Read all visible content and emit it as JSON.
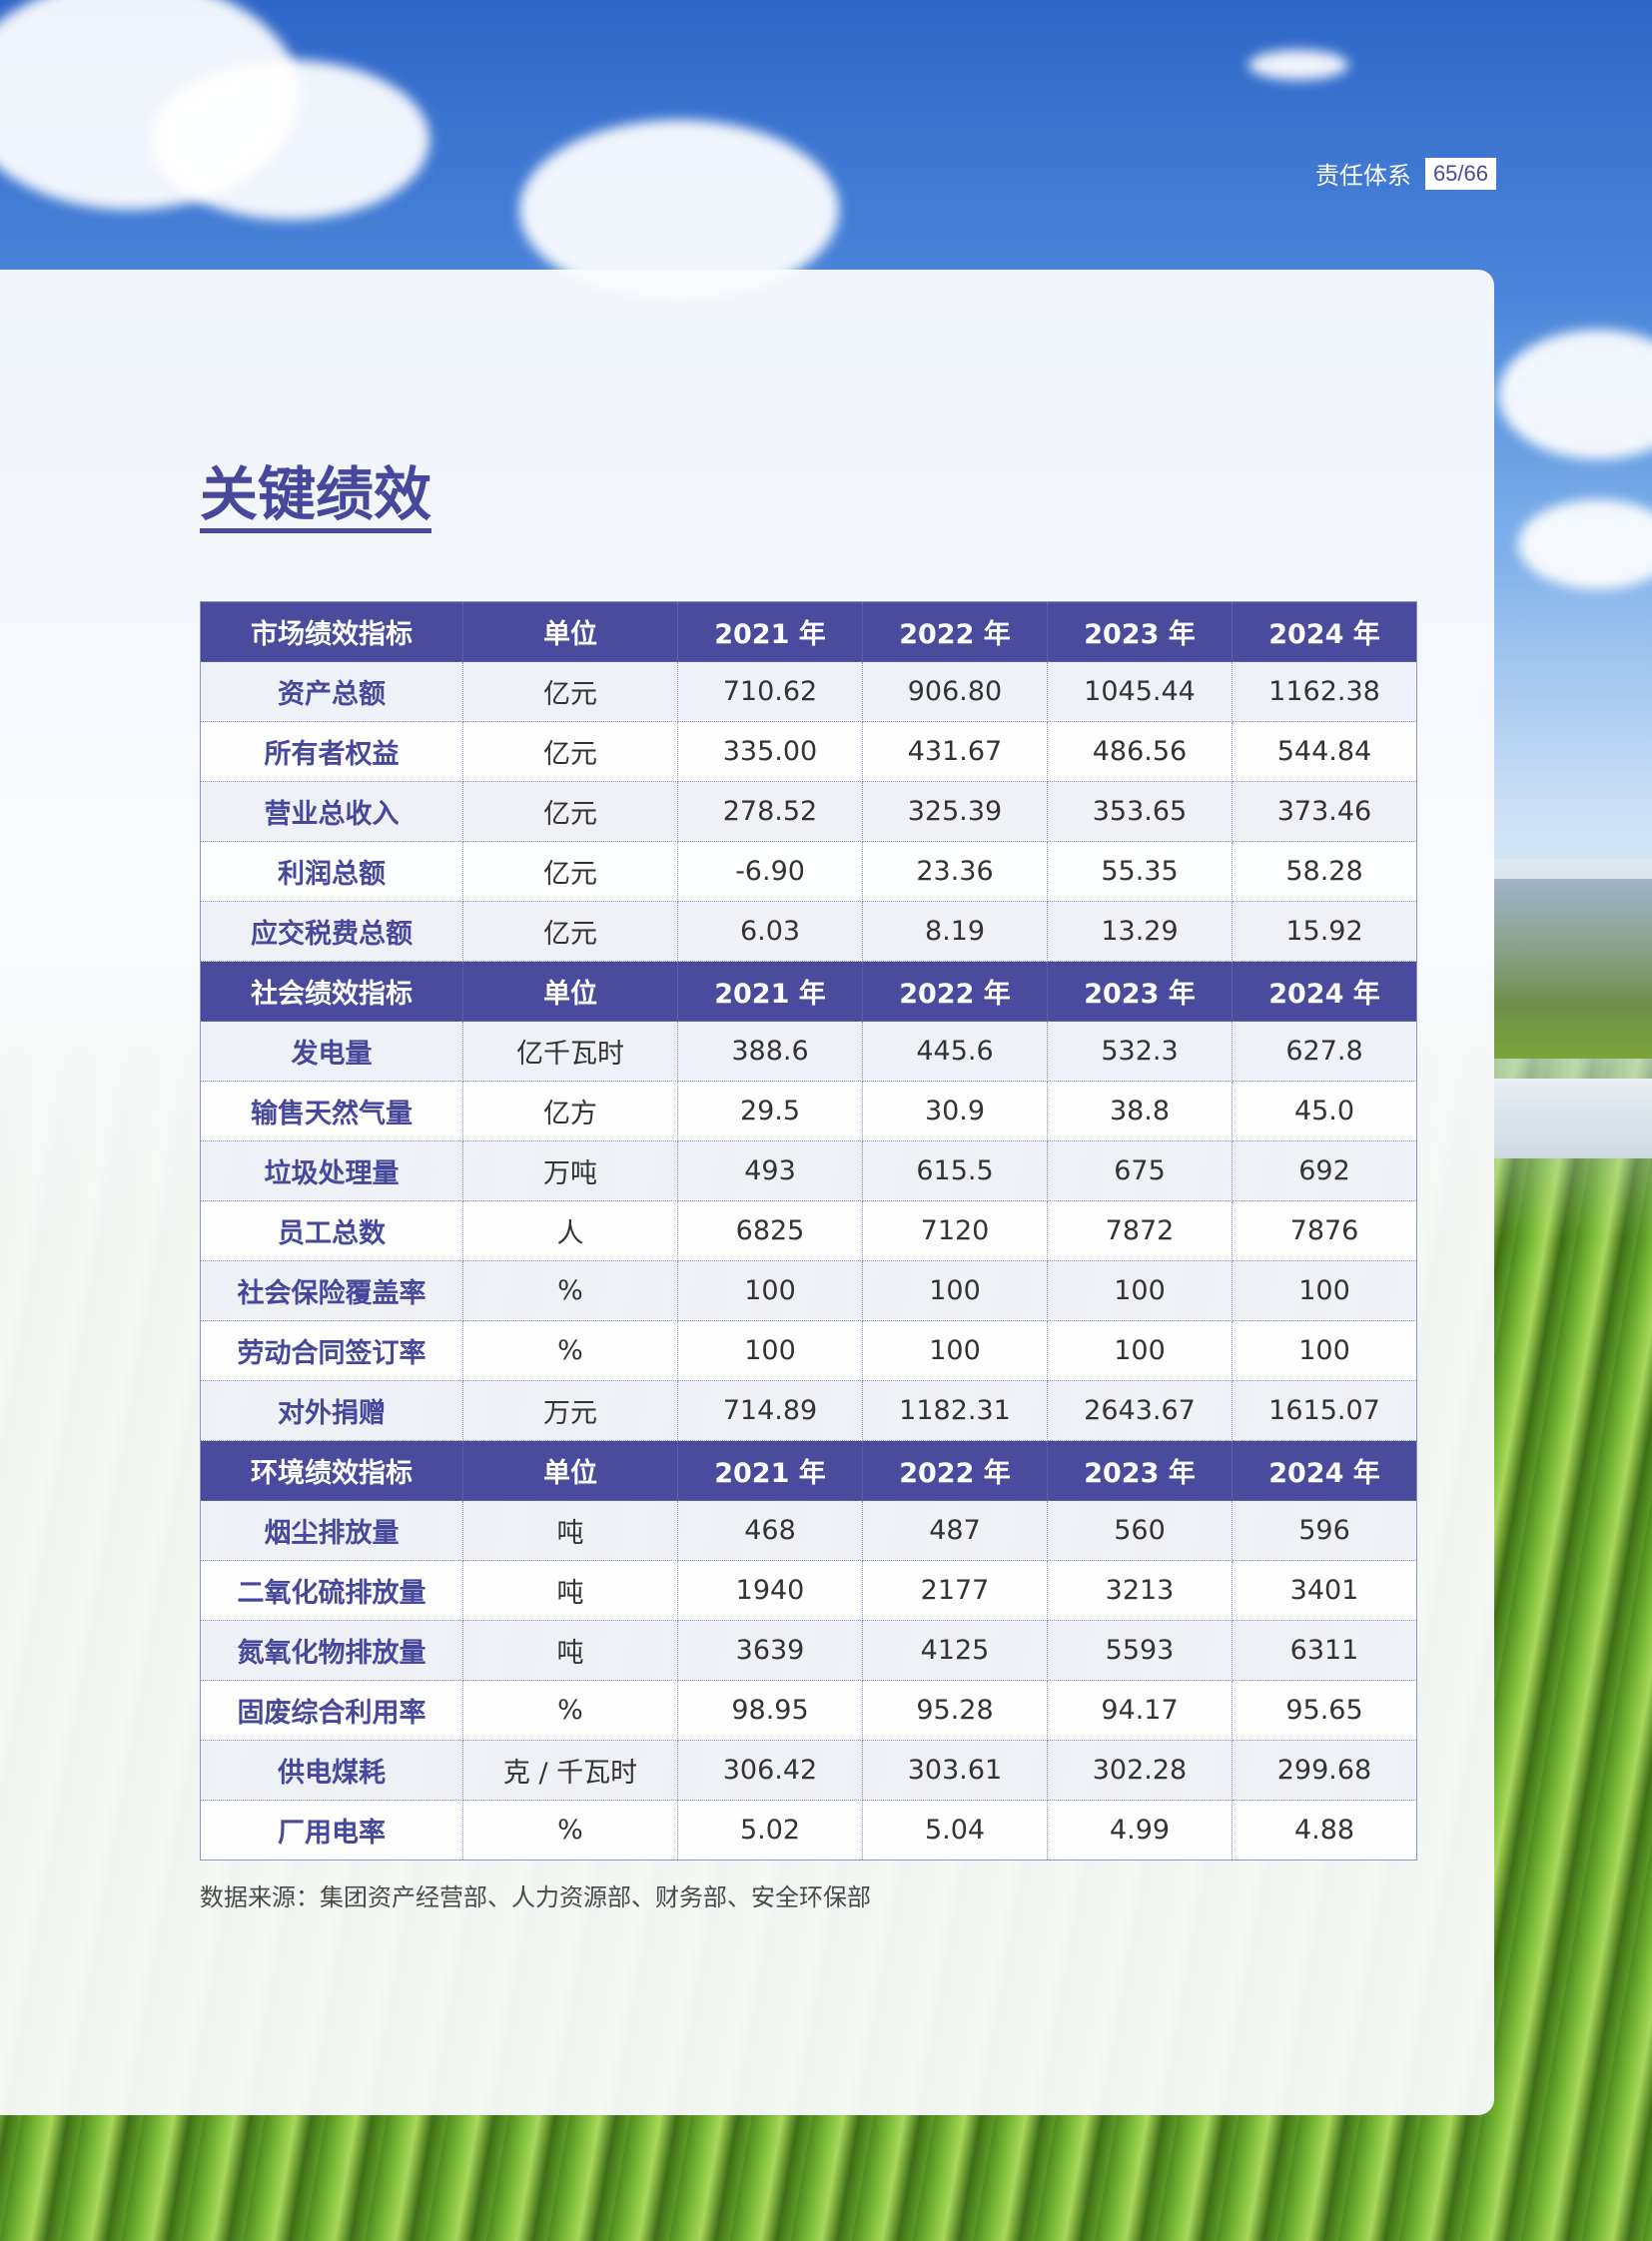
{
  "header": {
    "section": "责任体系",
    "page": "65/66"
  },
  "title": "关键绩效",
  "sections": [
    {
      "header": [
        "市场绩效指标",
        "单位",
        "2021 年",
        "2022 年",
        "2023 年",
        "2024 年"
      ],
      "rows": [
        [
          "资产总额",
          "亿元",
          "710.62",
          "906.80",
          "1045.44",
          "1162.38"
        ],
        [
          "所有者权益",
          "亿元",
          "335.00",
          "431.67",
          "486.56",
          "544.84"
        ],
        [
          "营业总收入",
          "亿元",
          "278.52",
          "325.39",
          "353.65",
          "373.46"
        ],
        [
          "利润总额",
          "亿元",
          "-6.90",
          "23.36",
          "55.35",
          "58.28"
        ],
        [
          "应交税费总额",
          "亿元",
          "6.03",
          "8.19",
          "13.29",
          "15.92"
        ]
      ]
    },
    {
      "header": [
        "社会绩效指标",
        "单位",
        "2021 年",
        "2022 年",
        "2023 年",
        "2024 年"
      ],
      "rows": [
        [
          "发电量",
          "亿千瓦时",
          "388.6",
          "445.6",
          "532.3",
          "627.8"
        ],
        [
          "输售天然气量",
          "亿方",
          "29.5",
          "30.9",
          "38.8",
          "45.0"
        ],
        [
          "垃圾处理量",
          "万吨",
          "493",
          "615.5",
          "675",
          "692"
        ],
        [
          "员工总数",
          "人",
          "6825",
          "7120",
          "7872",
          "7876"
        ],
        [
          "社会保险覆盖率",
          "%",
          "100",
          "100",
          "100",
          "100"
        ],
        [
          "劳动合同签订率",
          "%",
          "100",
          "100",
          "100",
          "100"
        ],
        [
          "对外捐赠",
          "万元",
          "714.89",
          "1182.31",
          "2643.67",
          "1615.07"
        ]
      ]
    },
    {
      "header": [
        "环境绩效指标",
        "单位",
        "2021 年",
        "2022 年",
        "2023 年",
        "2024 年"
      ],
      "rows": [
        [
          "烟尘排放量",
          "吨",
          "468",
          "487",
          "560",
          "596"
        ],
        [
          "二氧化硫排放量",
          "吨",
          "1940",
          "2177",
          "3213",
          "3401"
        ],
        [
          "氮氧化物排放量",
          "吨",
          "3639",
          "4125",
          "5593",
          "6311"
        ],
        [
          "固废综合利用率",
          "%",
          "98.95",
          "95.28",
          "94.17",
          "95.65"
        ],
        [
          "供电煤耗",
          "克 / 千瓦时",
          "306.42",
          "303.61",
          "302.28",
          "299.68"
        ],
        [
          "厂用电率",
          "%",
          "5.02",
          "5.04",
          "4.99",
          "4.88"
        ]
      ]
    }
  ],
  "source": "数据来源：集团资产经营部、人力资源部、财务部、安全环保部",
  "colors": {
    "accent": "#4a4b9c",
    "title": "#47489c"
  }
}
